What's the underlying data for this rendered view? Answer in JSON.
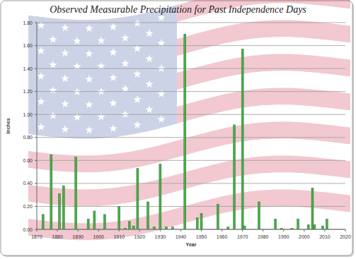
{
  "chart_data": {
    "type": "bar",
    "title": "Observed Measurable Precipitation for Past Independence Days",
    "x_label": "Year",
    "y_label": "Inches",
    "x": [
      1873,
      1877,
      1881,
      1883,
      1889,
      1895,
      1898,
      1903,
      1910,
      1913,
      1915,
      1917,
      1919,
      1924,
      1927,
      1930,
      1933,
      1936,
      1942,
      1948,
      1950,
      1958,
      1963,
      1966,
      1970,
      1971,
      1978,
      1986,
      1989,
      1994,
      1997,
      2002,
      2004,
      2005,
      2009,
      2011
    ],
    "values": [
      0.13,
      0.65,
      0.31,
      0.38,
      0.63,
      0.09,
      0.16,
      0.13,
      0.2,
      0.01,
      0.07,
      0.03,
      0.53,
      0.24,
      0.02,
      0.57,
      0.02,
      0.02,
      1.7,
      0.1,
      0.14,
      0.22,
      0.02,
      0.91,
      1.57,
      0.03,
      0.24,
      0.09,
      0.01,
      0.01,
      0.09,
      0.04,
      0.36,
      0.04,
      0.03,
      0.09
    ],
    "color": "#4caa4c",
    "xlim": [
      1870,
      2020
    ],
    "xticks": [
      1870,
      1880,
      1890,
      1900,
      1910,
      1920,
      1930,
      1940,
      1950,
      1960,
      1970,
      1980,
      1990,
      2000,
      2010,
      2020
    ],
    "ylim": [
      0,
      1.8
    ],
    "yticks": [
      {
        "value": 0,
        "label": "0.00"
      },
      {
        "value": 0.2,
        "label": "0.20"
      },
      {
        "value": 0.4,
        "label": "0.40"
      },
      {
        "value": 0.6,
        "label": "0.60"
      },
      {
        "value": 0.8,
        "label": "0.80"
      },
      {
        "value": 1.0,
        "label": "1.00"
      },
      {
        "value": 1.2,
        "label": "1.20"
      },
      {
        "value": 1.4,
        "label": "1.40"
      },
      {
        "value": 1.6,
        "label": "1.60"
      },
      {
        "value": 1.8,
        "label": "1.80"
      }
    ],
    "grid": true
  }
}
